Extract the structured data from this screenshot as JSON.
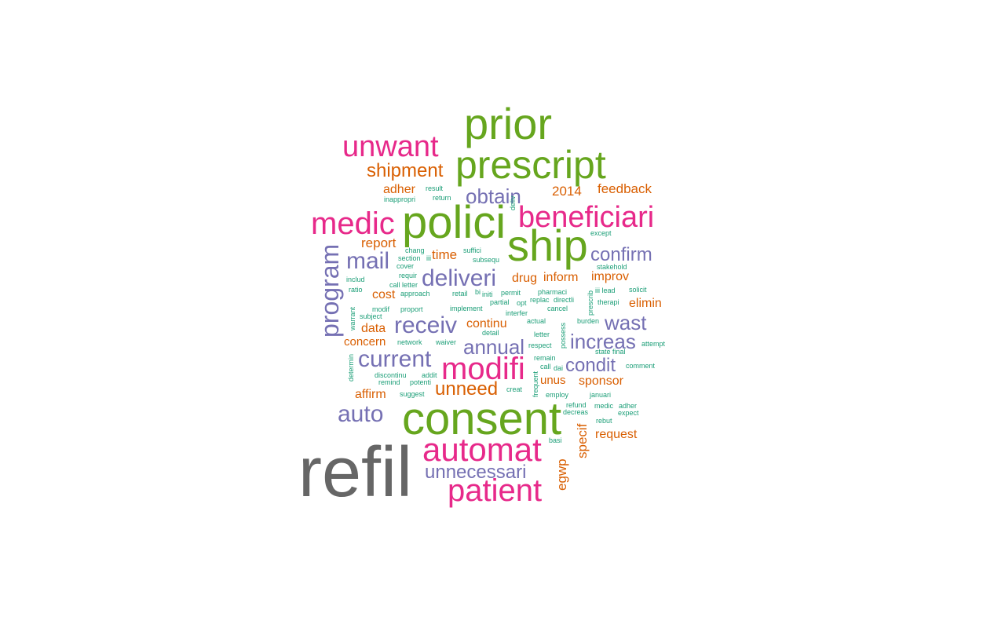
{
  "palette": {
    "c0": "#666666",
    "c1": "#66a61e",
    "c2": "#e7298a",
    "c3": "#7570b3",
    "c4": "#d95f02",
    "c5": "#1b9e77"
  },
  "words": {
    "refil": "refil",
    "consent": "consent",
    "prior": "prior",
    "prescript": "prescript",
    "polici": "polici",
    "ship": "ship",
    "automat": "automat",
    "patient": "patient",
    "modifi": "modifi",
    "beneficiari": "beneficiari",
    "medic": "medic",
    "unwant": "unwant",
    "program": "program",
    "deliveri": "deliveri",
    "receiv": "receiv",
    "current": "current",
    "mail": "mail",
    "auto": "auto",
    "unnecessari": "unnecessari",
    "obtain": "obtain",
    "confirm": "confirm",
    "annual": "annual",
    "increas": "increas",
    "wast": "wast",
    "condit": "condit",
    "shipment": "shipment",
    "unneed": "unneed",
    "feedback": "feedback",
    "y2014": "2014",
    "adher": "adher",
    "report": "report",
    "time": "time",
    "drug": "drug",
    "inform": "inform",
    "improv": "improv",
    "cost": "cost",
    "elimin": "elimin",
    "data": "data",
    "continu": "continu",
    "concern": "concern",
    "affirm": "affirm",
    "unus": "unus",
    "sponsor": "sponsor",
    "request": "request",
    "specif": "specif",
    "egwp": "egwp",
    "result": "result",
    "return": "return",
    "inappropri": "inappropri",
    "except": "except",
    "chang": "chang",
    "suffici": "suffici",
    "section": "section",
    "iii": "iii",
    "subsequ": "subsequ",
    "cover": "cover",
    "includ": "includ",
    "requir": "requir",
    "call_letter": "call letter",
    "stakehold": "stakehold",
    "ratio": "ratio",
    "approach": "approach",
    "retail": "retail",
    "bi": "bi",
    "initi": "initi",
    "permit": "permit",
    "pharmaci": "pharmaci",
    "iii_lead": "iii lead",
    "solicit": "solicit",
    "partial": "partial",
    "opt": "opt",
    "replac": "replac",
    "directli": "directli",
    "therapi": "therapi",
    "warrant": "warrant",
    "modif": "modif",
    "proport": "proport",
    "implement": "implement",
    "interfer": "interfer",
    "cancel": "cancel",
    "prescrib": "prescrib",
    "subject": "subject",
    "actual": "actual",
    "burden": "burden",
    "detail": "detail",
    "letter": "letter",
    "network": "network",
    "waiver": "waiver",
    "respect": "respect",
    "possess": "possess",
    "attempt": "attempt",
    "state_final": "state final",
    "determin": "determin",
    "remain": "remain",
    "comment": "comment",
    "discontinu": "discontinu",
    "addit": "addit",
    "call": "call",
    "dai": "dai",
    "remind": "remind",
    "potenti": "potenti",
    "frequent": "frequent",
    "suggest": "suggest",
    "creat": "creat",
    "employ": "employ",
    "januari": "januari",
    "deliv": "deliv",
    "refund": "refund",
    "medic_small": "medic",
    "adher_small": "adher",
    "decreas": "decreas",
    "expect": "expect",
    "rebut": "rebut",
    "basi": "basi"
  }
}
